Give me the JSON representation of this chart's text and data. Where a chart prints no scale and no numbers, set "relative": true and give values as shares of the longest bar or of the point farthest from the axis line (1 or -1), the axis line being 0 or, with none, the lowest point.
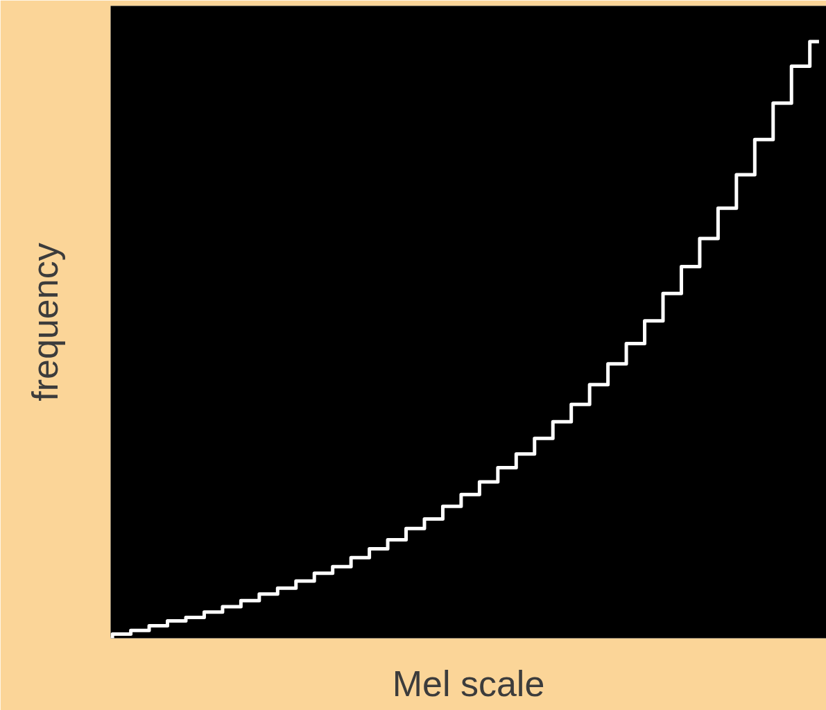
{
  "chart_data": {
    "type": "step",
    "relative": true,
    "xlabel": "Mel scale",
    "ylabel": "frequency",
    "categories": [
      null,
      null,
      null,
      null,
      null,
      null,
      null,
      null,
      null,
      null,
      null,
      null,
      null,
      null,
      null,
      null,
      null,
      null,
      null,
      null,
      null,
      null,
      null,
      null,
      null,
      null,
      null,
      null,
      null,
      null,
      null,
      null,
      null,
      null,
      null,
      null,
      null,
      null,
      null,
      null
    ],
    "series": [
      {
        "color": "#ffffff",
        "values": [
          0,
          0.007,
          0.013,
          0.021,
          0.029,
          0.035,
          0.044,
          0.053,
          0.063,
          0.074,
          0.084,
          0.096,
          0.109,
          0.12,
          0.135,
          0.15,
          0.165,
          0.184,
          0.2,
          0.221,
          0.241,
          0.262,
          0.286,
          0.309,
          0.335,
          0.363,
          0.392,
          0.425,
          0.46,
          0.494,
          0.532,
          0.578,
          0.623,
          0.67,
          0.721,
          0.777,
          0.836,
          0.897,
          0.959,
          1
        ]
      }
    ],
    "grid": false,
    "tick_labels": false
  }
}
